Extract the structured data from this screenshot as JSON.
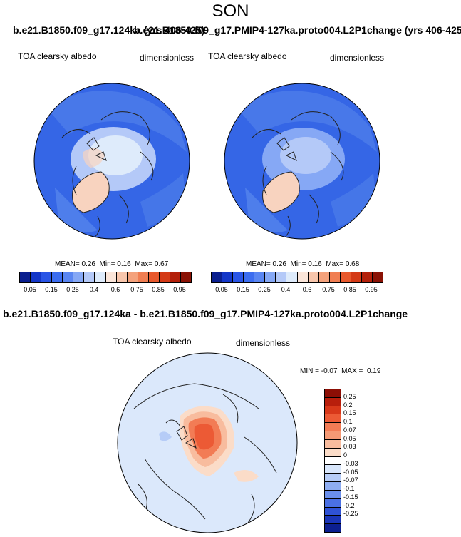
{
  "season": "SON",
  "overlap_titles": {
    "left": "b.e21.B1850.f09_g17.124ka (yrs 406-425)",
    "right": "b.e21.B1850.f09_g17.PMIP4-127ka.proto004.L2P1change (yrs 406-425)"
  },
  "panels": [
    {
      "left_label": "TOA clearsky albedo",
      "right_label": "dimensionless",
      "stats": {
        "mean_label": "MEAN=",
        "mean": "0.26",
        "min_label": "Min=",
        "min": "0.16",
        "max_label": "Max=",
        "max": "0.67"
      }
    },
    {
      "left_label": "TOA clearsky albedo",
      "right_label": "dimensionless",
      "stats": {
        "mean_label": "MEAN=",
        "mean": "0.26",
        "min_label": "Min=",
        "min": "0.16",
        "max_label": "Max=",
        "max": "0.68"
      }
    }
  ],
  "colorbar_top": {
    "labels": [
      "0.05",
      "0.15",
      "0.25",
      "0.4",
      "0.6",
      "0.75",
      "0.85",
      "0.95"
    ],
    "colors": [
      "#0a1f8f",
      "#1437c8",
      "#2a55e6",
      "#3c6df0",
      "#5a86f2",
      "#86a8f5",
      "#b4c9f8",
      "#deebfb",
      "#fbe6da",
      "#f8c6ac",
      "#f4a27c",
      "#f07e52",
      "#e8592d",
      "#d43a16",
      "#b3200a",
      "#8a1205"
    ]
  },
  "diff": {
    "title": "b.e21.B1850.f09_g17.124ka - b.e21.B1850.f09_g17.PMIP4-127ka.proto004.L2P1change",
    "left_label": "TOA clearsky albedo",
    "right_label": "dimensionless",
    "stats": {
      "min_label": "MIN =",
      "min": "-0.07",
      "max_label": "MAX =",
      "max": "0.19"
    },
    "colorbar": {
      "labels": [
        "0.25",
        "0.2",
        "0.15",
        "0.1",
        "0.07",
        "0.05",
        "0.03",
        "0",
        "-0.03",
        "-0.05",
        "-0.07",
        "-0.1",
        "-0.15",
        "-0.2",
        "-0.25"
      ],
      "colors": [
        "#8c0e05",
        "#b81e0c",
        "#d8381a",
        "#ec5a35",
        "#f27c55",
        "#f59a75",
        "#f8bc9e",
        "#fbdcc8",
        "#ffffff",
        "#d8e6fb",
        "#b6ccf7",
        "#8eadf2",
        "#6a8fec",
        "#4a70e4",
        "#2f52d6",
        "#1a35b8",
        "#0c1f90"
      ]
    }
  },
  "colors": {
    "ocean_albedo": "#3566e6",
    "greenland_albedo": "#f8d3bf",
    "arctic_ice_albedo": "#dbe8fb",
    "diff_background": "#dbe8fb",
    "diff_positive": "#f07048"
  }
}
